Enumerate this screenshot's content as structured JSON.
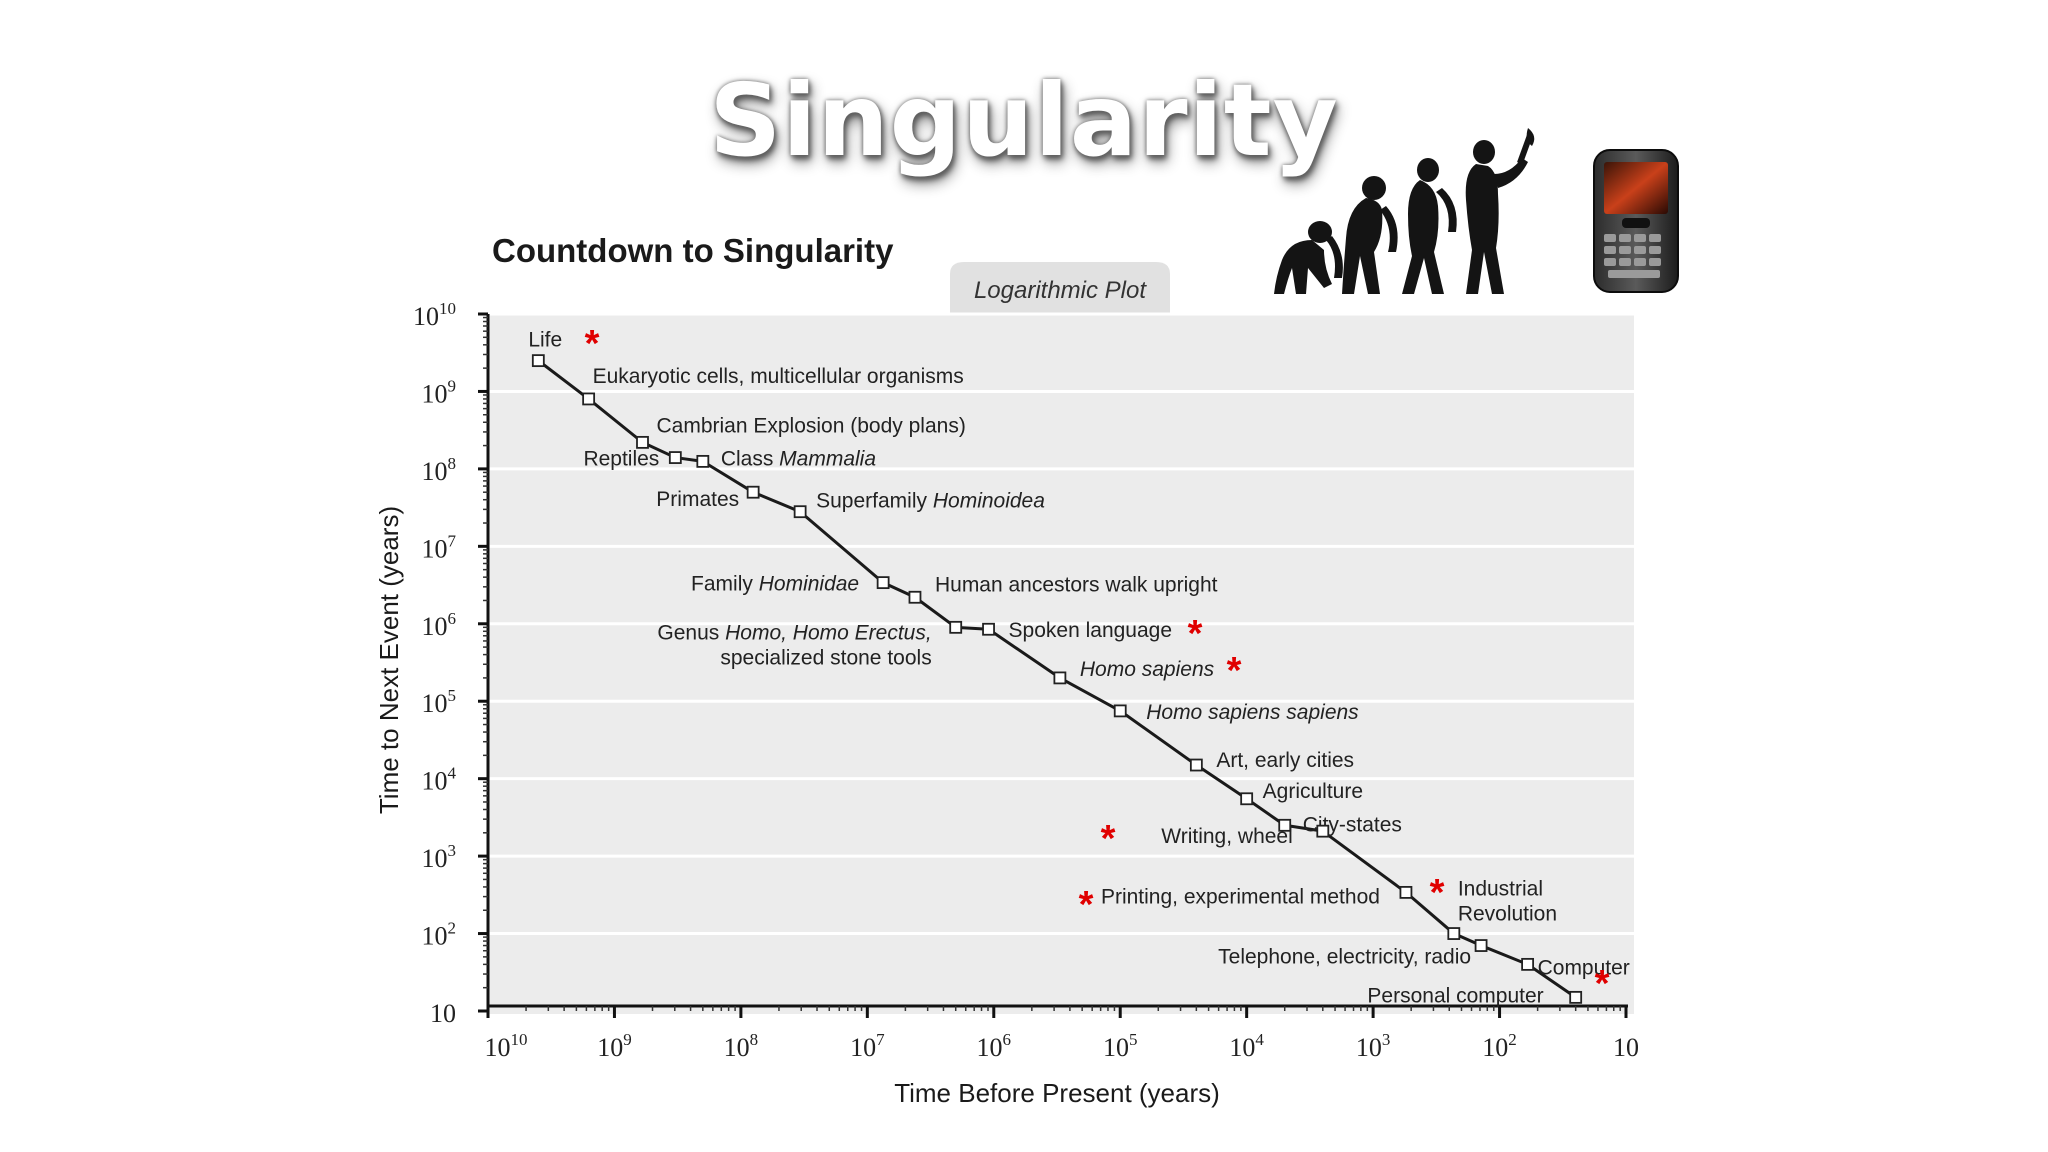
{
  "slide": {
    "title": "Singularity"
  },
  "decor": {
    "evolution_icon": "human-evolution-icon",
    "phone_icon": "smartphone-icon"
  },
  "chart_data": {
    "type": "line",
    "title": "Countdown to Singularity",
    "subtitle": "Logarithmic Plot",
    "xlabel": "Time Before Present (years)",
    "ylabel": "Time to Next Event (years)",
    "x_scale": "log",
    "y_scale": "log",
    "x_reversed": true,
    "xlim": [
      10000000000.0,
      10
    ],
    "ylim": [
      10,
      10000000000.0
    ],
    "x_ticks": [
      10000000000.0,
      1000000000.0,
      100000000.0,
      10000000.0,
      1000000.0,
      100000.0,
      10000.0,
      1000.0,
      100.0,
      10
    ],
    "y_ticks": [
      10,
      100.0,
      1000.0,
      10000.0,
      100000.0,
      1000000.0,
      10000000.0,
      100000000.0,
      1000000000.0,
      10000000000.0
    ],
    "grid": "horizontal",
    "colors": {
      "plot_bg": "#ececec",
      "grid": "#ffffff",
      "line": "#1a1a1a",
      "asterisk": "#e00000"
    },
    "asterisk_symbol": "*",
    "points": [
      {
        "x": 4000000000.0,
        "y": 2500000000.0,
        "label": "Life",
        "italic": [],
        "marked": true
      },
      {
        "x": 1600000000.0,
        "y": 800000000.0,
        "label": "Eukaryotic cells, multicellular organisms",
        "italic": []
      },
      {
        "x": 600000000.0,
        "y": 220000000.0,
        "label": "Cambrian Explosion (body plans)",
        "italic": []
      },
      {
        "x": 330000000.0,
        "y": 140000000.0,
        "label": "Reptiles",
        "italic": []
      },
      {
        "x": 200000000.0,
        "y": 125000000.0,
        "label": "Class Mammalia",
        "italic": [
          "Mammalia"
        ]
      },
      {
        "x": 80000000.0,
        "y": 50000000.0,
        "label": "Primates",
        "italic": []
      },
      {
        "x": 34000000.0,
        "y": 28000000.0,
        "label": "Superfamily Hominoidea",
        "italic": [
          "Hominoidea"
        ]
      },
      {
        "x": 7500000.0,
        "y": 3400000.0,
        "label": "Family Hominidae",
        "italic": [
          "Hominidae"
        ]
      },
      {
        "x": 4200000.0,
        "y": 2200000.0,
        "label": "Human ancestors walk upright",
        "italic": []
      },
      {
        "x": 2000000.0,
        "y": 900000.0,
        "label": "Genus Homo, Homo Erectus, specialized stone tools",
        "italic": [
          "Homo,",
          "Homo",
          "Erectus,"
        ]
      },
      {
        "x": 1100000.0,
        "y": 850000.0,
        "label": "Spoken language",
        "italic": [],
        "marked": true
      },
      {
        "x": 300000.0,
        "y": 200000.0,
        "label": "Homo sapiens",
        "italic": [
          "Homo",
          "sapiens"
        ],
        "marked": true
      },
      {
        "x": 100000.0,
        "y": 75000.0,
        "label": "Homo sapiens sapiens",
        "italic": [
          "Homo",
          "sapiens",
          "sapiens"
        ]
      },
      {
        "x": 25000.0,
        "y": 15000.0,
        "label": "Art, early cities",
        "italic": []
      },
      {
        "x": 10000.0,
        "y": 5500.0,
        "label": "Agriculture",
        "italic": []
      },
      {
        "x": 5000.0,
        "y": 2500.0,
        "label": "City-states",
        "italic": []
      },
      {
        "x": 2500.0,
        "y": 2100.0,
        "label": "Writing, wheel",
        "italic": [],
        "marked": true
      },
      {
        "x": 550.0,
        "y": 340.0,
        "label": "Printing, experimental method",
        "italic": [],
        "marked": true
      },
      {
        "x": 230.0,
        "y": 100.0,
        "label": "Industrial Revolution",
        "italic": [],
        "marked": true
      },
      {
        "x": 140.0,
        "y": 70.0,
        "label": "Telephone, electricity, radio",
        "italic": []
      },
      {
        "x": 60.0,
        "y": 40.0,
        "label": "Computer",
        "italic": []
      },
      {
        "x": 25.0,
        "y": 15.0,
        "label": "Personal computer",
        "italic": [],
        "marked": true
      }
    ]
  }
}
